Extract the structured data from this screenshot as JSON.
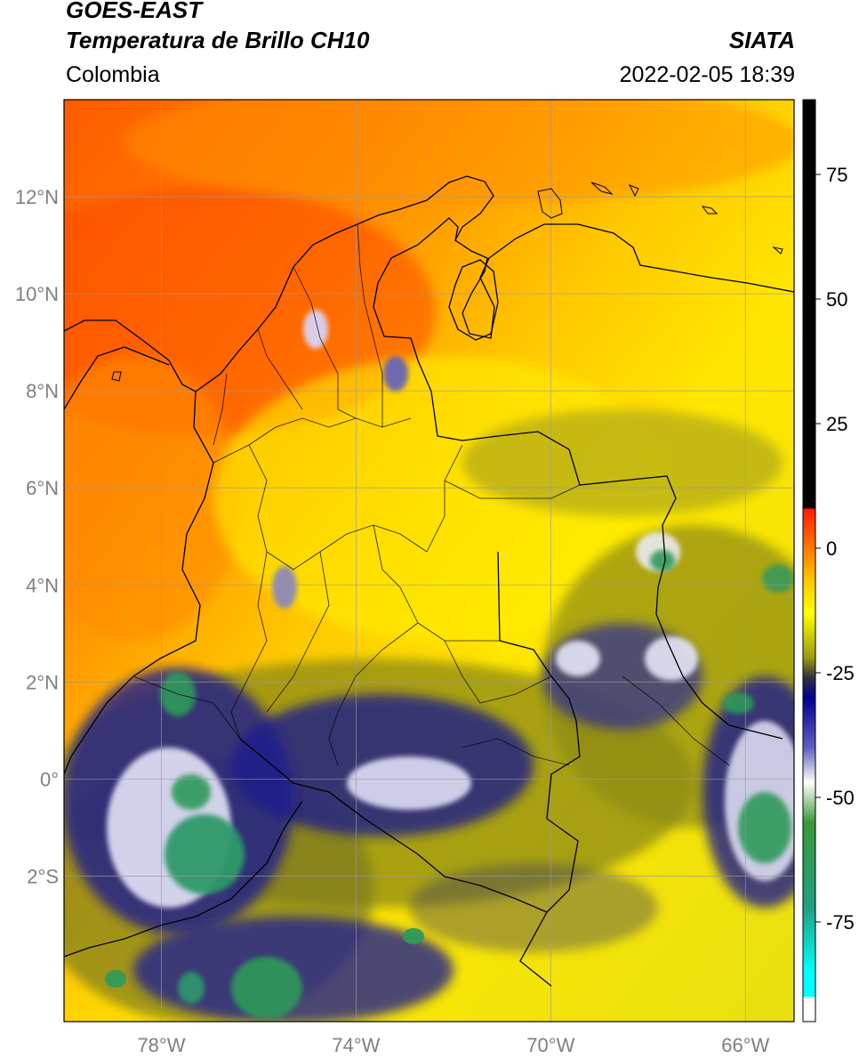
{
  "header": {
    "title_line1": "GOES-EAST",
    "title_line2": "Temperatura de Brillo CH10",
    "subtitle": "Colombia",
    "org": "SIATA",
    "timestamp": "2022-02-05 18:39"
  },
  "map": {
    "lon_range": [
      -80,
      -65
    ],
    "lat_range": [
      -5,
      14
    ],
    "lat_ticks": [
      {
        "value": 12,
        "label": "12°N"
      },
      {
        "value": 10,
        "label": "10°N"
      },
      {
        "value": 8,
        "label": "8°N"
      },
      {
        "value": 6,
        "label": "6°N"
      },
      {
        "value": 4,
        "label": "4°N"
      },
      {
        "value": 2,
        "label": "2°N"
      },
      {
        "value": 0,
        "label": "0°"
      },
      {
        "value": -2,
        "label": "2°S"
      }
    ],
    "lon_ticks": [
      {
        "value": -78,
        "label": "78°W"
      },
      {
        "value": -74,
        "label": "74°W"
      },
      {
        "value": -70,
        "label": "70°W"
      },
      {
        "value": -66,
        "label": "66°W"
      }
    ],
    "gridlines": true
  },
  "colorbar": {
    "range": [
      -95,
      90
    ],
    "ticks": [
      {
        "value": 75,
        "label": "75"
      },
      {
        "value": 50,
        "label": "50"
      },
      {
        "value": 25,
        "label": "25"
      },
      {
        "value": 0,
        "label": "0"
      },
      {
        "value": -25,
        "label": "-25"
      },
      {
        "value": -50,
        "label": "-50"
      },
      {
        "value": -75,
        "label": "-75"
      }
    ],
    "stops": [
      {
        "value": 90,
        "color": "#000000"
      },
      {
        "value": 8,
        "color": "#000000"
      },
      {
        "value": 7.9,
        "color": "#ff1a00"
      },
      {
        "value": 0,
        "color": "#ff7a00"
      },
      {
        "value": -7,
        "color": "#ffcc00"
      },
      {
        "value": -13,
        "color": "#ffff00"
      },
      {
        "value": -22,
        "color": "#9a9a10"
      },
      {
        "value": -26,
        "color": "#303040"
      },
      {
        "value": -30,
        "color": "#000090"
      },
      {
        "value": -40,
        "color": "#6060c0"
      },
      {
        "value": -47,
        "color": "#ffffff"
      },
      {
        "value": -55,
        "color": "#3a9a3a"
      },
      {
        "value": -72,
        "color": "#20a080"
      },
      {
        "value": -85,
        "color": "#00ffff"
      },
      {
        "value": -90,
        "color": "#00ffff"
      },
      {
        "value": -90.1,
        "color": "#ffffff"
      },
      {
        "value": -95,
        "color": "#ffffff"
      }
    ]
  }
}
